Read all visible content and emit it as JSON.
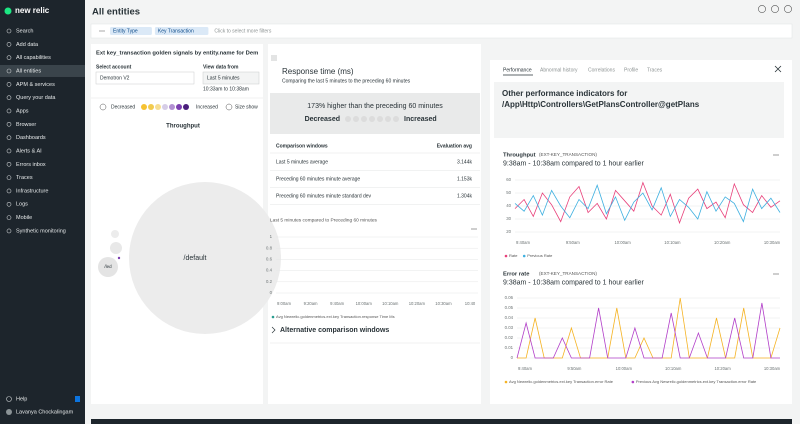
{
  "sidebar": {
    "logo": "new relic",
    "nav": [
      "Search",
      "Add data",
      "All capabilities",
      "All entities",
      "APM & services",
      "Query your data",
      "Apps",
      "Browser",
      "Dashboards",
      "Alerts & AI",
      "Errors inbox",
      "Traces",
      "Infrastructure",
      "Logs",
      "Mobile",
      "Synthetic monitoring"
    ],
    "help": "Help",
    "user": "Lavanya Chockalingam"
  },
  "header": {
    "title": "All entities"
  },
  "filters": {
    "chips": [
      "Entity Type",
      "Key Transaction"
    ],
    "placeholder": "Click to select more filters"
  },
  "left_panel": {
    "title": "Ext key_transaction golden signals by entity.name for Dem",
    "account_label": "Select account",
    "account": "Demotron V2",
    "range_label": "View data from",
    "range": "Last 5 minutes",
    "range_detail": "10:33am to 10:38am",
    "legend_low": "Decreased",
    "legend_high": "Increased",
    "size_label": "Size show",
    "bubble_title": "Throughput",
    "bubbles": [
      "/default",
      "/led"
    ]
  },
  "middle_panel": {
    "title": "Response time (ms)",
    "subtitle": "Comparing the last 5 minutes to the preceding 60 minutes",
    "summary": "173% higher than the preceding 60 minutes",
    "legend_low": "Decreased",
    "legend_high": "Increased",
    "table": {
      "header": [
        "Comparison windows",
        "Evaluation avg"
      ],
      "rows": [
        [
          "Last 5 minutes average",
          "3.144k"
        ],
        [
          "Preceding 60 minutes minute average",
          "1.153k"
        ],
        [
          "Preceding 60 minutes minute standard dev",
          "1.304k"
        ]
      ]
    },
    "more": "Alternative comparison windows"
  },
  "right_panel": {
    "tabs": [
      "Performance",
      "Abnormal history",
      "Correlations",
      "Profile",
      "Traces"
    ],
    "heading": [
      "Other performance indicators for",
      "/App\\Http\\Controllers\\GetPlansController@getPlans"
    ]
  },
  "chart_data": [
    {
      "type": "line",
      "title": "Throughput",
      "entity": "(EXT-KEY_TRANSACTION)",
      "subtitle": "9:38am - 10:38am compared to 1 hour earlier",
      "time_labels": [
        "9:40am",
        "9:50am",
        "10:00am",
        "10:10am",
        "10:20am",
        "10:30am"
      ],
      "ylim": [
        20,
        60
      ],
      "yticks": [
        60,
        50,
        40,
        30,
        20
      ],
      "grid": true,
      "series": [
        {
          "name": "Rate",
          "color": "#e8407a",
          "values": [
            38,
            45,
            32,
            50,
            41,
            28,
            47,
            55,
            35,
            42,
            30,
            52,
            44,
            36,
            58,
            40,
            33,
            49,
            27,
            46,
            53,
            38,
            43,
            31,
            57,
            41,
            35,
            48,
            39,
            44
          ]
        },
        {
          "name": "Previous Rate",
          "color": "#3fb0e0",
          "values": [
            42,
            36,
            48,
            33,
            52,
            40,
            31,
            45,
            38,
            56,
            34,
            47,
            29,
            43,
            50,
            37,
            54,
            32,
            45,
            39,
            30,
            51,
            36,
            47,
            42,
            28,
            53,
            38,
            46,
            35
          ]
        }
      ]
    },
    {
      "type": "line",
      "title": "Error rate",
      "entity": "(EXT-KEY_TRANSACTION)",
      "subtitle": "9:38am - 10:38am compared to 1 hour earlier",
      "time_labels": [
        "9:40am",
        "9:50am",
        "10:00am",
        "10:10am",
        "10:20am",
        "10:30am"
      ],
      "ylim": [
        0,
        0.06
      ],
      "yticks": [
        0.06,
        0.05,
        0.04,
        0.03,
        0.02,
        0.01,
        0
      ],
      "grid": true,
      "series": [
        {
          "name": "Avg Newrelic.goldenmetrics.ext.key Transaction.error Rate",
          "color": "#f5b323",
          "values": [
            0,
            0,
            0.04,
            0,
            0,
            0,
            0.03,
            0,
            0,
            0,
            0,
            0.05,
            0,
            0,
            0.02,
            0,
            0,
            0,
            0.06,
            0,
            0,
            0,
            0.04,
            0,
            0,
            0.05,
            0,
            0,
            0,
            0.03
          ]
        },
        {
          "name": "Previous Avg Newrelic.goldenmetrics.ext.key Transaction.error Rate",
          "color": "#b23fc9",
          "values": [
            0,
            0.035,
            0,
            0,
            0,
            0.02,
            0,
            0,
            0,
            0.05,
            0,
            0,
            0,
            0.03,
            0,
            0,
            0,
            0.045,
            0,
            0,
            0.025,
            0,
            0,
            0,
            0.04,
            0,
            0,
            0.055,
            0,
            0
          ]
        }
      ]
    },
    {
      "type": "line",
      "title": "Last 5 minutes compared to Preceding 60 minutes",
      "time_labels": [
        "9:00am",
        "9:20am",
        "9:40am",
        "10:00am",
        "10:10am",
        "10:20am",
        "10:30am",
        "10:40"
      ],
      "ylim": [
        0,
        1
      ],
      "yticks": [
        1,
        0.8,
        0.6,
        0.4,
        0.2,
        0
      ],
      "grid": true,
      "series": [
        {
          "name": "Avg Newrelic.goldenmetrics.ext.key Transaction.response Time Ms",
          "color": "#2a9d8f",
          "values": []
        }
      ]
    }
  ]
}
